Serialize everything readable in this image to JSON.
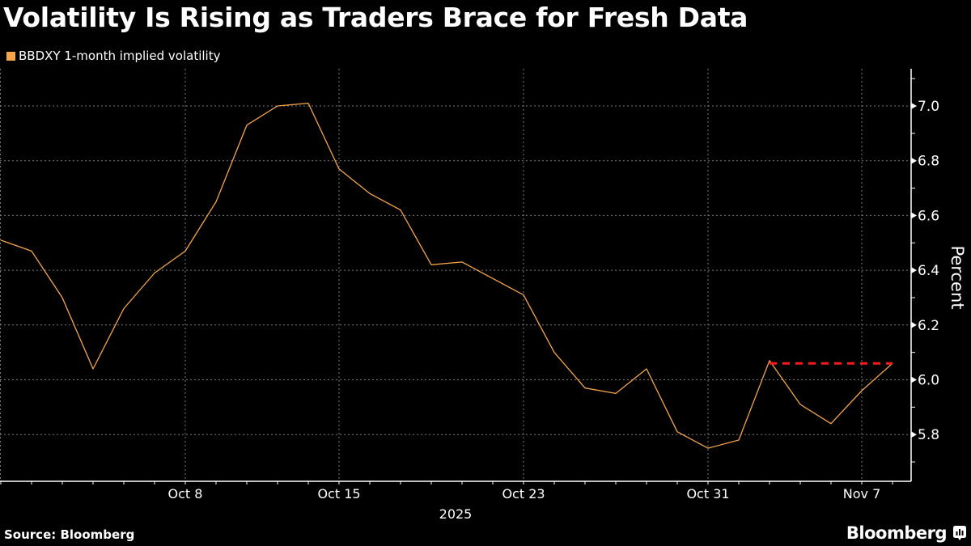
{
  "header": {
    "title": "Volatility Is Rising as Traders Brace for Fresh Data"
  },
  "legend": {
    "label": "BBDXY 1-month implied volatility",
    "color": "#f5a54a"
  },
  "footer": {
    "source": "Source: Bloomberg",
    "brand": "Bloomberg",
    "brand_icon": "bloomberg-chart-icon"
  },
  "colors": {
    "background": "#000000",
    "line": "#f5a54a",
    "reference_line": "#ff1a1a",
    "grid": "#7a7a7a",
    "axis": "#ffffff"
  },
  "chart_data": {
    "type": "line",
    "title": "Volatility Is Rising as Traders Brace for Fresh Data",
    "xlabel": "2025",
    "ylabel": "Percent",
    "ylim": [
      5.63,
      7.14
    ],
    "yticks": [
      5.8,
      6.0,
      6.2,
      6.4,
      6.6,
      6.8,
      7.0
    ],
    "ytick_labels": [
      "5.8",
      "6.0",
      "6.2",
      "6.4",
      "6.6",
      "6.8",
      "7.0"
    ],
    "xtick_labels": [
      {
        "label": "Oct 8",
        "index": 6
      },
      {
        "label": "Oct 15",
        "index": 11
      },
      {
        "label": "Oct 23",
        "index": 17
      },
      {
        "label": "Oct 31",
        "index": 23
      },
      {
        "label": "Nov 7",
        "index": 28
      }
    ],
    "x_year_label": "2025",
    "grid": true,
    "legend_position": "top-left",
    "x": [
      "Sep 30",
      "Oct 1",
      "Oct 2",
      "Oct 3",
      "Oct 6",
      "Oct 7",
      "Oct 8",
      "Oct 9",
      "Oct 10",
      "Oct 13",
      "Oct 14",
      "Oct 15",
      "Oct 16",
      "Oct 17",
      "Oct 20",
      "Oct 21",
      "Oct 22",
      "Oct 23",
      "Oct 24",
      "Oct 27",
      "Oct 28",
      "Oct 29",
      "Oct 30",
      "Oct 31",
      "Nov 3",
      "Nov 4",
      "Nov 5",
      "Nov 6",
      "Nov 7",
      "Nov 10"
    ],
    "series": [
      {
        "name": "BBDXY 1-month implied volatility",
        "color": "#f5a54a",
        "values": [
          6.51,
          6.47,
          6.3,
          6.04,
          6.26,
          6.39,
          6.47,
          6.65,
          6.93,
          7.0,
          7.01,
          6.77,
          6.68,
          6.62,
          6.42,
          6.43,
          6.37,
          6.31,
          6.1,
          5.97,
          5.95,
          6.04,
          5.81,
          5.75,
          5.78,
          6.07,
          5.91,
          5.84,
          5.96,
          6.06
        ]
      }
    ],
    "annotations": [
      {
        "type": "horizontal-dashed-line",
        "color": "#ff1a1a",
        "value": 6.06,
        "from_index": 25,
        "to_index": 29
      }
    ]
  }
}
